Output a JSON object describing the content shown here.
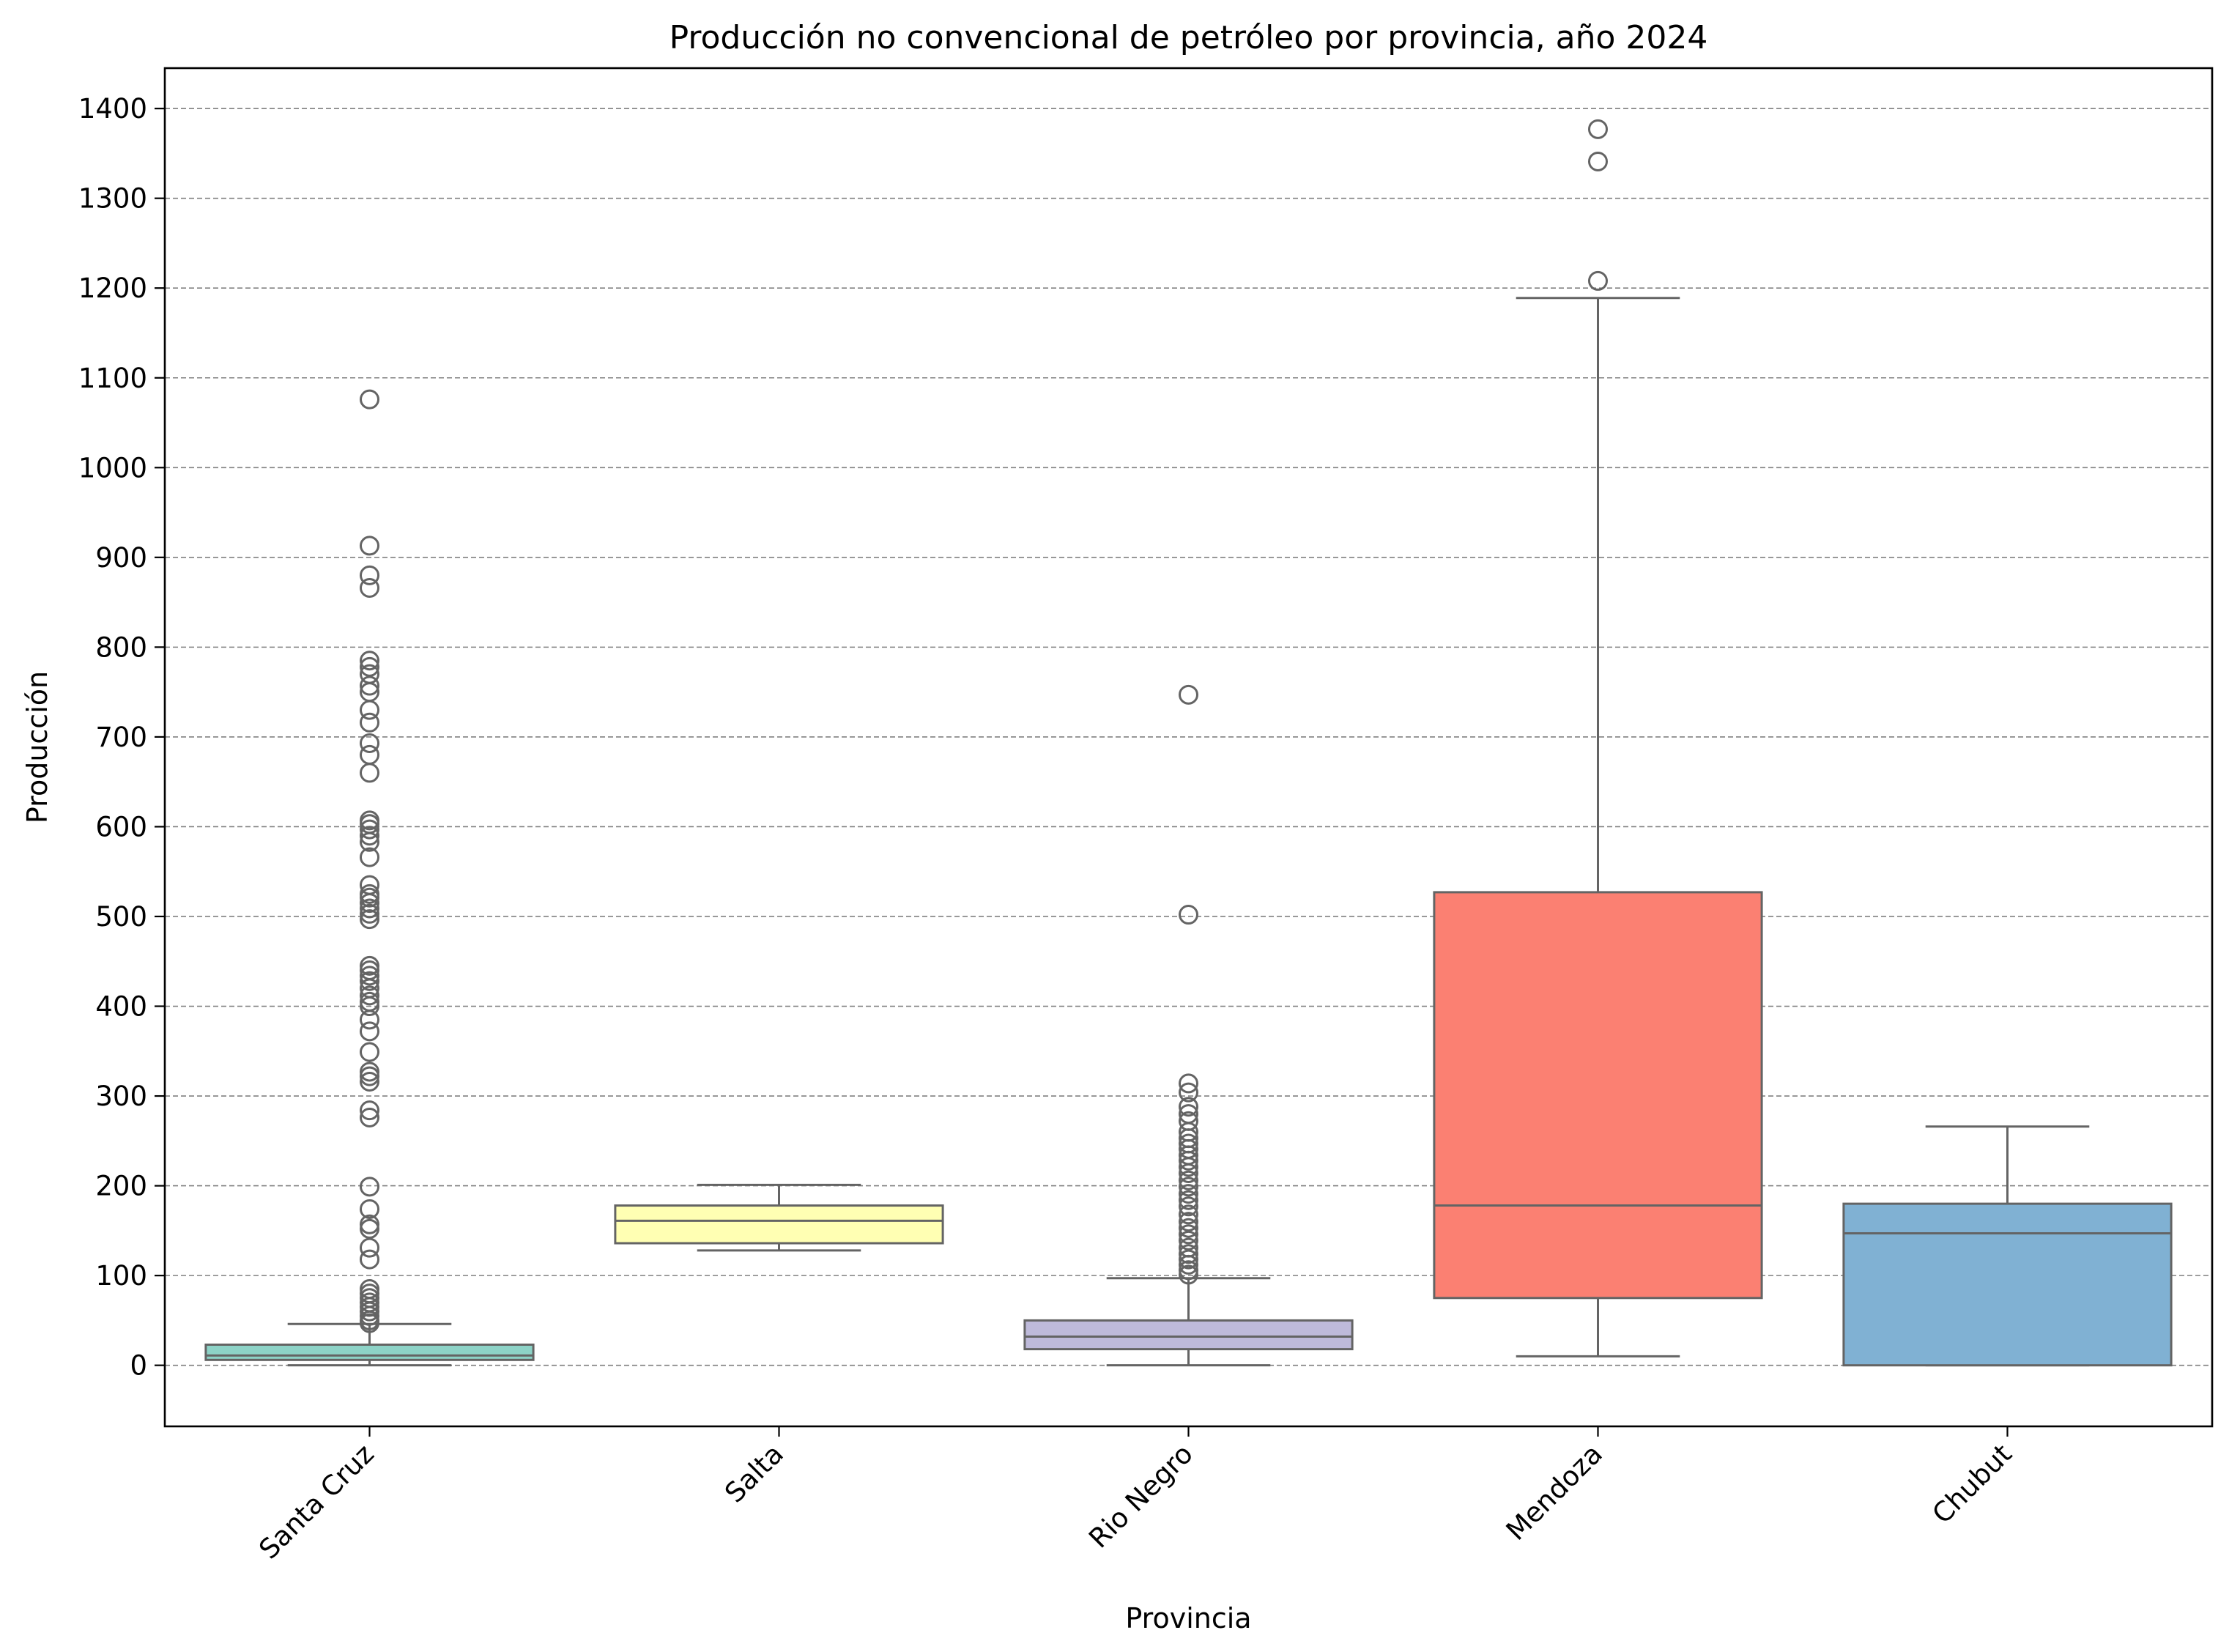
{
  "chart_data": {
    "type": "box",
    "title": "Producción no convencional de petróleo por provincia, año 2024",
    "xlabel": "Provincia",
    "ylabel": "Producción",
    "ylim": [
      -68,
      1445
    ],
    "yticks": [
      0,
      100,
      200,
      300,
      400,
      500,
      600,
      700,
      800,
      900,
      1000,
      1100,
      1200,
      1300,
      1400
    ],
    "grid": true,
    "categories": [
      "Santa Cruz",
      "Salta",
      "Rio Negro",
      "Mendoza",
      "Chubut"
    ],
    "colors": [
      "#8dd3c7",
      "#ffffb3",
      "#bebada",
      "#fb8072",
      "#80b1d3"
    ],
    "boxes": [
      {
        "name": "Santa Cruz",
        "whisker_low": 0,
        "q1": 6,
        "median": 11,
        "q3": 23,
        "whisker_high": 46,
        "outliers": [
          1076,
          913,
          880,
          866,
          785,
          778,
          770,
          757,
          750,
          730,
          716,
          693,
          680,
          660,
          607,
          603,
          597,
          590,
          583,
          566,
          535,
          525,
          521,
          515,
          509,
          503,
          497,
          445,
          440,
          434,
          428,
          420,
          412,
          405,
          400,
          385,
          372,
          349,
          327,
          322,
          316,
          284,
          276,
          199,
          174,
          157,
          152,
          131,
          118,
          85,
          80,
          75,
          70,
          65,
          60,
          55,
          50,
          47
        ]
      },
      {
        "name": "Salta",
        "whisker_low": 128,
        "q1": 136,
        "median": 161,
        "q3": 178,
        "whisker_high": 201,
        "outliers": []
      },
      {
        "name": "Rio Negro",
        "whisker_low": 0,
        "q1": 18,
        "median": 32,
        "q3": 50,
        "whisker_high": 97,
        "outliers": [
          747,
          502,
          314,
          304,
          288,
          280,
          272,
          260,
          253,
          247,
          241,
          234,
          228,
          221,
          214,
          206,
          199,
          191,
          184,
          177,
          168,
          160,
          153,
          146,
          139,
          131,
          124,
          118,
          112,
          106,
          101
        ]
      },
      {
        "name": "Mendoza",
        "whisker_low": 10,
        "q1": 75,
        "median": 178,
        "q3": 527,
        "whisker_high": 1189,
        "outliers": [
          1377,
          1341,
          1208
        ]
      },
      {
        "name": "Chubut",
        "whisker_low": 0,
        "q1": 0,
        "median": 147,
        "q3": 180,
        "whisker_high": 266,
        "outliers": []
      }
    ]
  }
}
